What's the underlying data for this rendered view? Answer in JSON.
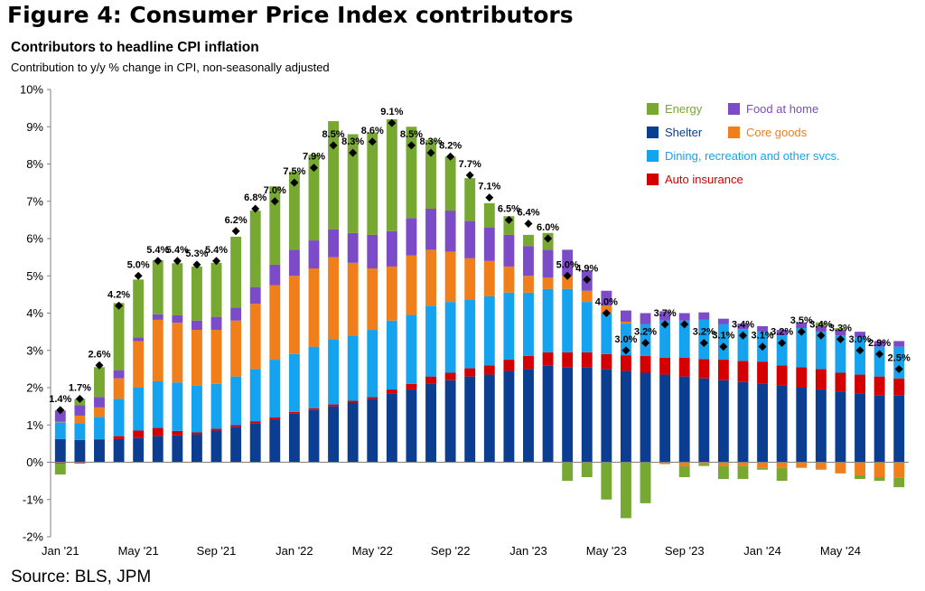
{
  "figure_title": "Figure 4: Consumer Price Index contributors",
  "source": "Source: BLS, JPM",
  "chart_data": {
    "type": "bar",
    "stacked": true,
    "title": "Contributors to headline CPI inflation",
    "subtitle": "Contribution to y/y % change in CPI, non-seasonally adjusted",
    "xlabel": "",
    "ylabel": "",
    "ylim": [
      -2,
      10
    ],
    "yticks": [
      -2,
      -1,
      0,
      1,
      2,
      3,
      4,
      5,
      6,
      7,
      8,
      9,
      10
    ],
    "ytick_labels": [
      "-2%",
      "-1%",
      "0%",
      "1%",
      "2%",
      "3%",
      "4%",
      "5%",
      "6%",
      "7%",
      "8%",
      "9%",
      "10%"
    ],
    "xtick_labels": [
      "Jan '21",
      "May '21",
      "Sep '21",
      "Jan '22",
      "May '22",
      "Sep '22",
      "Jan '23",
      "May '23",
      "Sep '23",
      "Jan '24",
      "May '24"
    ],
    "grid": false,
    "legend_position": "top-right",
    "categories": [
      "Jan '21",
      "Feb '21",
      "Mar '21",
      "Apr '21",
      "May '21",
      "Jun '21",
      "Jul '21",
      "Aug '21",
      "Sep '21",
      "Oct '21",
      "Nov '21",
      "Dec '21",
      "Jan '22",
      "Feb '22",
      "Mar '22",
      "Apr '22",
      "May '22",
      "Jun '22",
      "Jul '22",
      "Aug '22",
      "Sep '22",
      "Oct '22",
      "Nov '22",
      "Dec '22",
      "Jan '23",
      "Feb '23",
      "Mar '23",
      "Apr '23",
      "May '23",
      "Jun '23",
      "Jul '23",
      "Aug '23",
      "Sep '23",
      "Oct '23",
      "Nov '23",
      "Dec '23",
      "Jan '24",
      "Feb '24",
      "Mar '24",
      "Apr '24",
      "May '24",
      "Jun '24",
      "Jul '24",
      "Aug '24"
    ],
    "series": [
      {
        "name": "Shelter",
        "color": "#0b3d91",
        "values": [
          0.62,
          0.6,
          0.6,
          0.62,
          0.65,
          0.7,
          0.72,
          0.75,
          0.85,
          0.95,
          1.05,
          1.15,
          1.3,
          1.4,
          1.5,
          1.6,
          1.7,
          1.85,
          1.95,
          2.1,
          2.2,
          2.3,
          2.35,
          2.45,
          2.5,
          2.6,
          2.55,
          2.55,
          2.5,
          2.45,
          2.4,
          2.35,
          2.3,
          2.25,
          2.2,
          2.15,
          2.1,
          2.05,
          2.0,
          1.95,
          1.9,
          1.85,
          1.8,
          1.8
        ]
      },
      {
        "name": "Auto insurance",
        "color": "#d40000",
        "values": [
          -0.03,
          -0.03,
          0.02,
          0.08,
          0.2,
          0.22,
          0.12,
          0.05,
          0.05,
          0.05,
          0.05,
          0.05,
          0.05,
          0.05,
          0.05,
          0.05,
          0.05,
          0.1,
          0.15,
          0.2,
          0.2,
          0.22,
          0.25,
          0.3,
          0.35,
          0.35,
          0.4,
          0.4,
          0.4,
          0.42,
          0.45,
          0.45,
          0.5,
          0.52,
          0.55,
          0.57,
          0.6,
          0.55,
          0.55,
          0.55,
          0.5,
          0.5,
          0.5,
          0.45
        ]
      },
      {
        "name": "Dining, recreation and other svcs.",
        "color": "#15a3f0",
        "values": [
          0.45,
          0.45,
          0.6,
          1.0,
          1.15,
          1.25,
          1.3,
          1.25,
          1.2,
          1.3,
          1.4,
          1.55,
          1.55,
          1.65,
          1.75,
          1.75,
          1.8,
          1.85,
          1.85,
          1.9,
          1.9,
          1.85,
          1.85,
          1.8,
          1.7,
          1.7,
          1.7,
          1.35,
          1.1,
          0.85,
          0.85,
          1.0,
          1.0,
          1.05,
          0.95,
          0.85,
          0.8,
          0.8,
          1.05,
          1.0,
          1.0,
          1.0,
          0.8,
          0.85
        ]
      },
      {
        "name": "Core goods",
        "color": "#f07e1a",
        "values": [
          0.02,
          0.2,
          0.25,
          0.55,
          1.25,
          1.65,
          1.6,
          1.5,
          1.45,
          1.5,
          1.75,
          2.0,
          2.1,
          2.1,
          2.2,
          1.95,
          1.65,
          1.45,
          1.6,
          1.5,
          1.35,
          1.1,
          0.95,
          0.7,
          0.45,
          0.3,
          0.35,
          0.3,
          0.2,
          0.05,
          0.0,
          -0.05,
          -0.1,
          -0.05,
          -0.1,
          -0.1,
          -0.15,
          -0.15,
          -0.15,
          -0.2,
          -0.3,
          -0.35,
          -0.4,
          -0.42
        ]
      },
      {
        "name": "Food at home",
        "color": "#7c4bc8",
        "values": [
          0.3,
          0.28,
          0.28,
          0.22,
          0.1,
          0.15,
          0.2,
          0.25,
          0.35,
          0.35,
          0.45,
          0.55,
          0.7,
          0.75,
          0.75,
          0.8,
          0.9,
          0.95,
          1.0,
          1.1,
          1.1,
          1.0,
          0.9,
          0.85,
          0.8,
          0.75,
          0.7,
          0.55,
          0.4,
          0.3,
          0.3,
          0.25,
          0.2,
          0.2,
          0.15,
          0.15,
          0.15,
          0.15,
          0.15,
          0.15,
          0.15,
          0.15,
          0.15,
          0.15
        ]
      },
      {
        "name": "Energy",
        "color": "#76a832",
        "values": [
          -0.3,
          0.17,
          0.8,
          1.8,
          1.55,
          1.45,
          1.4,
          1.45,
          1.45,
          1.9,
          2.05,
          2.1,
          2.1,
          2.3,
          2.9,
          2.65,
          2.75,
          3.0,
          2.45,
          1.85,
          1.45,
          1.15,
          0.65,
          0.5,
          0.3,
          0.45,
          -0.5,
          -0.4,
          -1.0,
          -1.5,
          -1.1,
          0.0,
          -0.3,
          -0.05,
          -0.35,
          -0.35,
          -0.05,
          -0.35,
          0.0,
          0.1,
          0.05,
          -0.1,
          -0.1,
          -0.25
        ]
      }
    ],
    "headline": {
      "values": [
        1.4,
        1.7,
        2.6,
        4.2,
        5.0,
        5.4,
        5.4,
        5.3,
        5.4,
        6.2,
        6.8,
        7.0,
        7.5,
        7.9,
        8.5,
        8.3,
        8.6,
        9.1,
        8.5,
        8.3,
        8.2,
        7.7,
        7.1,
        6.5,
        6.4,
        6.0,
        5.0,
        4.9,
        4.0,
        3.0,
        3.2,
        3.7,
        3.7,
        3.2,
        3.1,
        3.4,
        3.1,
        3.2,
        3.5,
        3.4,
        3.3,
        3.0,
        2.9,
        2.5
      ],
      "labels": [
        "1.4%",
        "1.7%",
        "2.6%",
        "4.2%",
        "5.0%",
        "5.4%",
        "5.4%",
        "5.3%",
        "5.4%",
        "6.2%",
        "6.8%",
        "7.0%",
        "7.5%",
        "7.9%",
        "8.5%",
        "8.3%",
        "8.6%",
        "9.1%",
        "8.5%",
        "8.3%",
        "8.2%",
        "7.7%",
        "7.1%",
        "6.5%",
        "6.4%",
        "6.0%",
        "5.0%",
        "4.9%",
        "4.0%",
        "3.0%",
        "3.2%",
        "3.7%",
        "",
        "3.2%",
        "3.1%",
        "3.4%",
        "3.1%",
        "3.2%",
        "3.5%",
        "3.4%",
        "3.3%",
        "3.0%",
        "2.9%",
        "2.5%"
      ]
    },
    "legend": [
      {
        "label": "Energy",
        "color": "#76a832"
      },
      {
        "label": "Food at home",
        "color": "#7c4bc8"
      },
      {
        "label": "Shelter",
        "color": "#0b3d91"
      },
      {
        "label": "Core goods",
        "color": "#f07e1a"
      },
      {
        "label": "Dining, recreation and other svcs.",
        "color": "#15a3f0"
      },
      {
        "label": "Auto insurance",
        "color": "#d40000"
      }
    ]
  }
}
